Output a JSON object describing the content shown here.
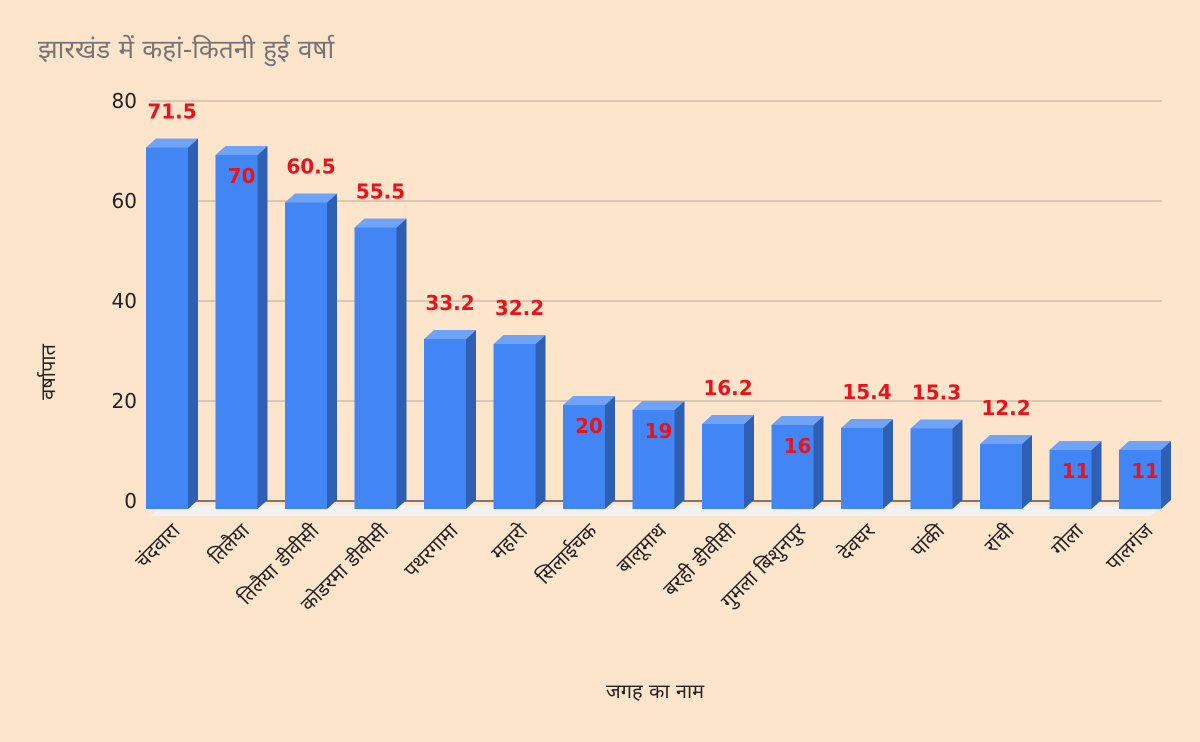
{
  "chart_data": {
    "type": "bar",
    "title": "झारखंड में कहां-कितनी हुई वर्षा",
    "xlabel": "जगह का नाम",
    "ylabel": "वर्षापात",
    "ylim": [
      0,
      80
    ],
    "yticks": [
      0,
      20,
      40,
      60,
      80
    ],
    "grid": true,
    "legend": "none",
    "categories": [
      "चंदवारा",
      "तिलैया",
      "तिलैया डीवीसी",
      "कोडरमा डीवीसी",
      "पथरगामा",
      "महारो",
      "सिलाईचक",
      "बालूमाथ",
      "बरही डीवीसी",
      "गुमला बिशुनपुर",
      "देवघर",
      "पांकी",
      "रांची",
      "गोला",
      "पालगंज"
    ],
    "values": [
      71.5,
      70,
      60.5,
      55.5,
      33.2,
      32.2,
      20,
      19,
      16.2,
      16,
      15.4,
      15.3,
      12.2,
      11,
      11
    ],
    "label_inside": [
      false,
      true,
      false,
      false,
      false,
      false,
      true,
      true,
      false,
      true,
      false,
      false,
      false,
      true,
      true
    ],
    "colors": {
      "bar_front": "#4285f4",
      "bar_top": "#6fa3f7",
      "bar_side": "#2f5fb3",
      "value_label": "#e8141b",
      "gridline": "#b7a899",
      "background": "#fde5cc"
    }
  }
}
